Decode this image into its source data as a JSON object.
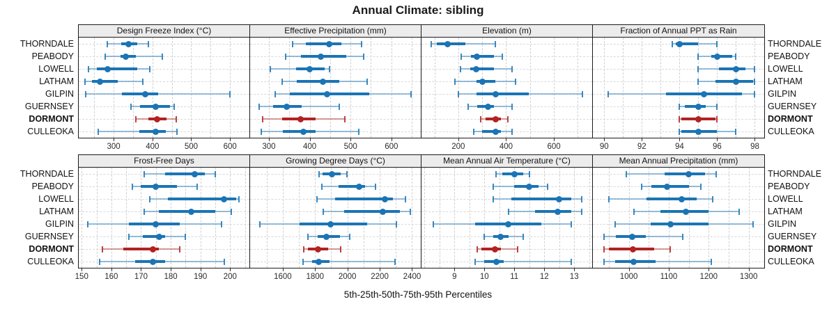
{
  "chart_data": {
    "type": "scatter",
    "subtype": "percentile-dot-interval-trellis",
    "title": "Annual Climate: sibling",
    "xlabel": "5th-25th-50th-75th-95th Percentiles",
    "percentiles": [
      "5th",
      "25th",
      "50th",
      "75th",
      "95th"
    ],
    "categories": [
      "THORNDALE",
      "PEABODY",
      "LOWELL",
      "LATHAM",
      "GILPIN",
      "GUERNSEY",
      "DORMONT",
      "CULLEOKA"
    ],
    "highlight_category": "DORMONT",
    "colors": {
      "series": "#1b74b4",
      "highlight": "#b22222",
      "panel_header_bg": "#ececec",
      "grid": "#cfcfcf",
      "border": "#1a1a1a"
    },
    "layout": {
      "rows": 2,
      "cols": 4,
      "legend": "none",
      "grid": "dashed",
      "labels_left": true,
      "labels_right": true
    },
    "panels": [
      {
        "row": 0,
        "col": 0,
        "title": "Design Freeze Index (°C)",
        "xlim": [
          210,
          650
        ],
        "ticks": [
          300,
          400,
          500,
          600
        ],
        "grid_step": 50,
        "rows": [
          {
            "name": "THORNDALE",
            "p": [
              283,
              320,
              339,
              360,
              390
            ]
          },
          {
            "name": "PEABODY",
            "p": [
              278,
              317,
              332,
              358,
              425
            ]
          },
          {
            "name": "LOWELL",
            "p": [
              236,
              257,
              285,
              361,
              393
            ]
          },
          {
            "name": "LATHAM",
            "p": [
              226,
              244,
              265,
              311,
              376
            ]
          },
          {
            "name": "GILPIN",
            "p": [
              228,
              322,
              381,
              414,
              600
            ]
          },
          {
            "name": "GUERNSEY",
            "p": [
              344,
              368,
              409,
              445,
              456
            ]
          },
          {
            "name": "DORMONT",
            "p": [
              357,
              390,
              412,
              437,
              461
            ]
          },
          {
            "name": "CULLEOKA",
            "p": [
              260,
              366,
              409,
              435,
              464
            ]
          }
        ]
      },
      {
        "row": 0,
        "col": 1,
        "title": "Effective Precipitation (mm)",
        "xlim": [
          254,
          672
        ],
        "ticks": [
          300,
          400,
          500,
          600
        ],
        "grid_step": 50,
        "rows": [
          {
            "name": "THORNDALE",
            "p": [
              358,
              390,
              448,
              478,
              527
            ]
          },
          {
            "name": "PEABODY",
            "p": [
              341,
              378,
              427,
              489,
              532
            ]
          },
          {
            "name": "LOWELL",
            "p": [
              304,
              366,
              400,
              437,
              449
            ]
          },
          {
            "name": "LATHAM",
            "p": [
              333,
              369,
              433,
              472,
              540
            ]
          },
          {
            "name": "GILPIN",
            "p": [
              315,
              351,
              442,
              545,
              648
            ]
          },
          {
            "name": "GUERNSEY",
            "p": [
              277,
              310,
              343,
              381,
              472
            ]
          },
          {
            "name": "DORMONT",
            "p": [
              284,
              332,
              378,
              415,
              486
            ]
          },
          {
            "name": "CULLEOKA",
            "p": [
              281,
              335,
              384,
              415,
              520
            ]
          }
        ]
      },
      {
        "row": 0,
        "col": 2,
        "title": "Elevation (m)",
        "xlim": [
          46,
          760
        ],
        "ticks": [
          200,
          400,
          600
        ],
        "grid_step": 100,
        "rows": [
          {
            "name": "THORNDALE",
            "p": [
              88,
              110,
              154,
              231,
              354
            ]
          },
          {
            "name": "PEABODY",
            "p": [
              212,
              252,
              279,
              349,
              383
            ]
          },
          {
            "name": "LOWELL",
            "p": [
              209,
              250,
              276,
              349,
              426
            ]
          },
          {
            "name": "LATHAM",
            "p": [
              187,
              276,
              302,
              354,
              439
            ]
          },
          {
            "name": "GILPIN",
            "p": [
              199,
              276,
              357,
              494,
              719
            ]
          },
          {
            "name": "GUERNSEY",
            "p": [
              241,
              279,
              323,
              349,
              426
            ]
          },
          {
            "name": "DORMONT",
            "p": [
              294,
              315,
              356,
              378,
              407
            ]
          },
          {
            "name": "CULLEOKA",
            "p": [
              265,
              300,
              356,
              378,
              426
            ]
          }
        ]
      },
      {
        "row": 0,
        "col": 3,
        "title": "Fraction of Annual PPT as Rain",
        "xlim": [
          89.4,
          98.5
        ],
        "ticks": [
          90,
          92,
          94,
          96,
          98
        ],
        "grid_step": 1,
        "rows": [
          {
            "name": "THORNDALE",
            "p": [
              93.6,
              93.8,
              94,
              95,
              96
            ]
          },
          {
            "name": "PEABODY",
            "p": [
              95,
              95.7,
              96,
              96.8,
              97
            ]
          },
          {
            "name": "LOWELL",
            "p": [
              95,
              96.1,
              97,
              97.5,
              98
            ]
          },
          {
            "name": "LATHAM",
            "p": [
              95,
              95.9,
              97,
              97.9,
              98
            ]
          },
          {
            "name": "GILPIN",
            "p": [
              90.2,
              93.3,
              95.3,
              97.3,
              98
            ]
          },
          {
            "name": "GUERNSEY",
            "p": [
              94,
              94.3,
              95,
              95.4,
              96
            ]
          },
          {
            "name": "DORMONT",
            "p": [
              94,
              94.1,
              95,
              95.9,
              96
            ]
          },
          {
            "name": "CULLEOKA",
            "p": [
              94,
              94.1,
              95,
              96,
              97
            ]
          }
        ]
      },
      {
        "row": 1,
        "col": 0,
        "title": "Frost-Free Days",
        "xlim": [
          149,
          206.5
        ],
        "ticks": [
          150,
          160,
          170,
          180,
          190,
          200
        ],
        "grid_step": 5,
        "rows": [
          {
            "name": "THORNDALE",
            "p": [
              171,
              178,
              188,
              191.5,
              195
            ]
          },
          {
            "name": "PEABODY",
            "p": [
              167,
              170,
              175,
              182,
              189
            ]
          },
          {
            "name": "LOWELL",
            "p": [
              173,
              179,
              198,
              202,
              203
            ]
          },
          {
            "name": "LATHAM",
            "p": [
              171,
              176,
              187,
              195,
              200.5
            ]
          },
          {
            "name": "GILPIN",
            "p": [
              152,
              166,
              175,
              183,
              197
            ]
          },
          {
            "name": "GUERNSEY",
            "p": [
              166,
              170.5,
              176,
              178,
              185
            ]
          },
          {
            "name": "DORMONT",
            "p": [
              157,
              164,
              174,
              176,
              183
            ]
          },
          {
            "name": "CULLEOKA",
            "p": [
              156,
              168,
              174,
              178,
              198
            ]
          }
        ]
      },
      {
        "row": 1,
        "col": 1,
        "title": "Growing Degree Days (°C)",
        "xlim": [
          1398,
          2454
        ],
        "ticks": [
          1600,
          1800,
          2000,
          2200,
          2400
        ],
        "grid_step": 100,
        "rows": [
          {
            "name": "THORNDALE",
            "p": [
              1824,
              1846,
              1903,
              1960,
              1996
            ]
          },
          {
            "name": "PEABODY",
            "p": [
              1843,
              1946,
              2071,
              2110,
              2174
            ]
          },
          {
            "name": "LOWELL",
            "p": [
              1810,
              1924,
              2234,
              2281,
              2360
            ]
          },
          {
            "name": "LATHAM",
            "p": [
              1849,
              1981,
              2217,
              2324,
              2389
            ]
          },
          {
            "name": "GILPIN",
            "p": [
              1460,
              1703,
              1896,
              2124,
              2303
            ]
          },
          {
            "name": "GUERNSEY",
            "p": [
              1757,
              1814,
              1871,
              1953,
              2014
            ]
          },
          {
            "name": "DORMONT",
            "p": [
              1729,
              1757,
              1817,
              1881,
              1957
            ]
          },
          {
            "name": "CULLEOKA",
            "p": [
              1724,
              1781,
              1824,
              1889,
              2296
            ]
          }
        ]
      },
      {
        "row": 1,
        "col": 2,
        "title": "Mean Annual Air Temperature (°C)",
        "xlim": [
          7.9,
          13.6
        ],
        "ticks": [
          9,
          10,
          11,
          12,
          13
        ],
        "grid_step": 0.5,
        "rows": [
          {
            "name": "THORNDALE",
            "p": [
              10.4,
              10.6,
              11,
              11.3,
              11.5
            ]
          },
          {
            "name": "PEABODY",
            "p": [
              10.3,
              11,
              11.5,
              11.8,
              12.1
            ]
          },
          {
            "name": "LOWELL",
            "p": [
              10.3,
              10.9,
              12.5,
              12.9,
              13.25
            ]
          },
          {
            "name": "LATHAM",
            "p": [
              10.8,
              11.7,
              12.45,
              12.9,
              13.25
            ]
          },
          {
            "name": "GILPIN",
            "p": [
              8.3,
              9.7,
              10.8,
              11.9,
              12.9
            ]
          },
          {
            "name": "GUERNSEY",
            "p": [
              10,
              10.3,
              10.55,
              10.8,
              11.3
            ]
          },
          {
            "name": "DORMONT",
            "p": [
              9.75,
              9.9,
              10.35,
              10.55,
              11.1
            ]
          },
          {
            "name": "CULLEOKA",
            "p": [
              9.7,
              10,
              10.4,
              10.65,
              12.9
            ]
          }
        ]
      },
      {
        "row": 1,
        "col": 3,
        "title": "Mean Annual Precipitation (mm)",
        "xlim": [
          910,
          1339
        ],
        "ticks": [
          1000,
          1100,
          1200,
          1300
        ],
        "grid_step": 50,
        "rows": [
          {
            "name": "THORNDALE",
            "p": [
              994,
              1090,
              1150,
              1190,
              1218
            ]
          },
          {
            "name": "PEABODY",
            "p": [
              1032,
              1057,
              1095,
              1150,
              1181
            ]
          },
          {
            "name": "LOWELL",
            "p": [
              950,
              1045,
              1133,
              1170,
              1210
            ]
          },
          {
            "name": "LATHAM",
            "p": [
              1013,
              1079,
              1143,
              1200,
              1276
            ]
          },
          {
            "name": "GILPIN",
            "p": [
              965,
              1055,
              1105,
              1200,
              1311
            ]
          },
          {
            "name": "GUERNSEY",
            "p": [
              938,
              968,
              1009,
              1043,
              1135
            ]
          },
          {
            "name": "DORMONT",
            "p": [
              938,
              950,
              1010,
              1064,
              1104
            ]
          },
          {
            "name": "CULLEOKA",
            "p": [
              938,
              965,
              1012,
              1067,
              1207
            ]
          }
        ]
      }
    ]
  }
}
